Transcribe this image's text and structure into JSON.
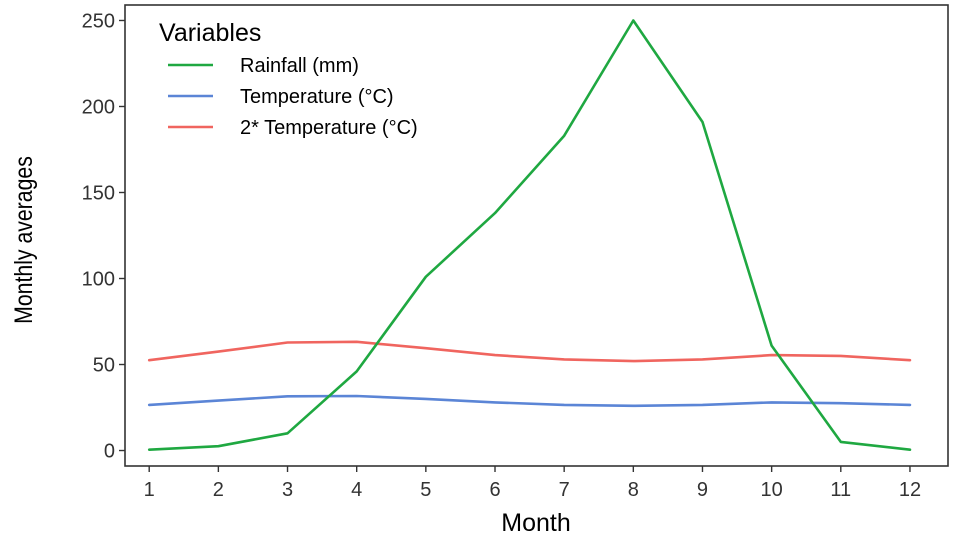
{
  "chart_data": {
    "type": "line",
    "title": "",
    "xlabel": "Month",
    "ylabel": "Monthly averages",
    "x": [
      1,
      2,
      3,
      4,
      5,
      6,
      7,
      8,
      9,
      10,
      11,
      12
    ],
    "x_tick_labels": [
      "1",
      "2",
      "3",
      "4",
      "5",
      "6",
      "7",
      "8",
      "9",
      "10",
      "11",
      "12"
    ],
    "y_ticks": [
      0,
      50,
      100,
      150,
      200,
      250
    ],
    "y_tick_labels": [
      "0",
      "50",
      "100",
      "150",
      "200",
      "250"
    ],
    "xlim": [
      0.65,
      12.55
    ],
    "ylim": [
      -9,
      259
    ],
    "grid": false,
    "legend": {
      "title": "Variables",
      "position": "top-left"
    },
    "series": [
      {
        "name": "Rainfall (mm)",
        "color": "#1fa841",
        "values": [
          0.5,
          2.5,
          10,
          46,
          101,
          138,
          183,
          250,
          191,
          61,
          5,
          0.5
        ]
      },
      {
        "name": "Temperature (°C)",
        "color": "#5b85d6",
        "values": [
          26.5,
          29,
          31.5,
          31.7,
          30,
          28,
          26.5,
          26,
          26.5,
          28,
          27.5,
          26.5
        ]
      },
      {
        "name": "2* Temperature (°C)",
        "color": "#f0655f",
        "values": [
          52.5,
          57.5,
          62.8,
          63.2,
          59.5,
          55.5,
          53,
          52,
          53,
          55.5,
          55,
          52.5
        ]
      }
    ]
  }
}
